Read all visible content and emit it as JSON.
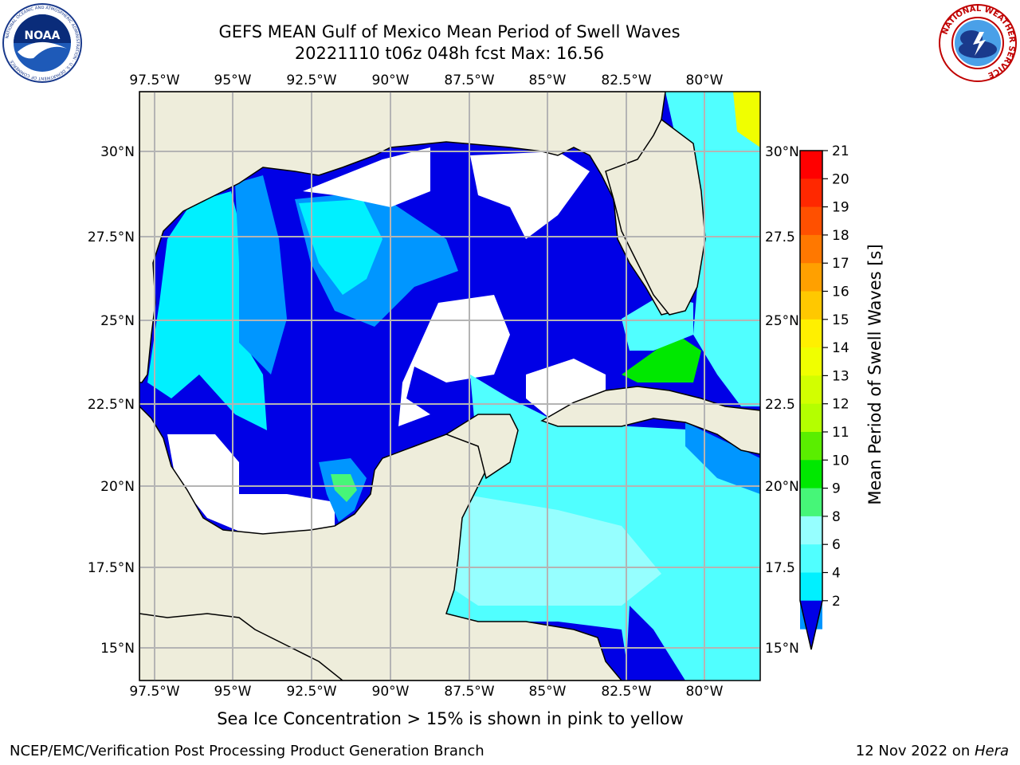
{
  "title": {
    "line1": "GEFS MEAN Gulf of Mexico Mean Period of Swell Waves",
    "line2": "20221110 t06z 048h fcst   Max: 16.56"
  },
  "logos": {
    "left": {
      "name": "noaa-logo",
      "text": "NOAA",
      "ring_text": "NATIONAL OCEANIC AND ATMOSPHERIC ADMINISTRATION · U.S. DEPARTMENT OF COMMERCE"
    },
    "right": {
      "name": "nws-logo",
      "ring_text": "NATIONAL WEATHER SERVICE"
    }
  },
  "map": {
    "lon_labels": [
      "97.5°W",
      "95°W",
      "92.5°W",
      "90°W",
      "87.5°W",
      "85°W",
      "82.5°W",
      "80°W"
    ],
    "lat_labels_left": [
      "30°N",
      "27.5°N",
      "25°N",
      "22.5°N",
      "20°N",
      "17.5°N",
      "15°N"
    ],
    "lat_labels_right": [
      "30°N",
      "27.5",
      "25°N",
      "22.5",
      "20°N",
      "17.5",
      "15°N"
    ],
    "colors": {
      "land": "#eeeddb",
      "grid": "#b4b4b4",
      "water_dark": "#0000e0"
    }
  },
  "colorbar": {
    "label": "Mean Period of Swell Waves [s]",
    "ticks": [
      "21",
      "20",
      "19",
      "18",
      "17",
      "16",
      "15",
      "14",
      "13",
      "12",
      "11",
      "10",
      "9",
      "8",
      "6",
      "4",
      "2"
    ],
    "colors": [
      "#ff0000",
      "#ff2800",
      "#ff5000",
      "#ff7800",
      "#ffa000",
      "#ffc800",
      "#fff000",
      "#f0ff00",
      "#d2ff00",
      "#b4ff00",
      "#5aee00",
      "#00e800",
      "#46f678",
      "#96ffff",
      "#50ffff",
      "#00f0ff",
      "#0096ff",
      "#0000e6"
    ]
  },
  "footer": {
    "note": "Sea Ice Concentration > 15% is shown in pink to yellow",
    "left": "NCEP/EMC/Verification Post Processing Product Generation Branch",
    "right_date": "12 Nov 2022 on ",
    "right_host": "Hera"
  }
}
